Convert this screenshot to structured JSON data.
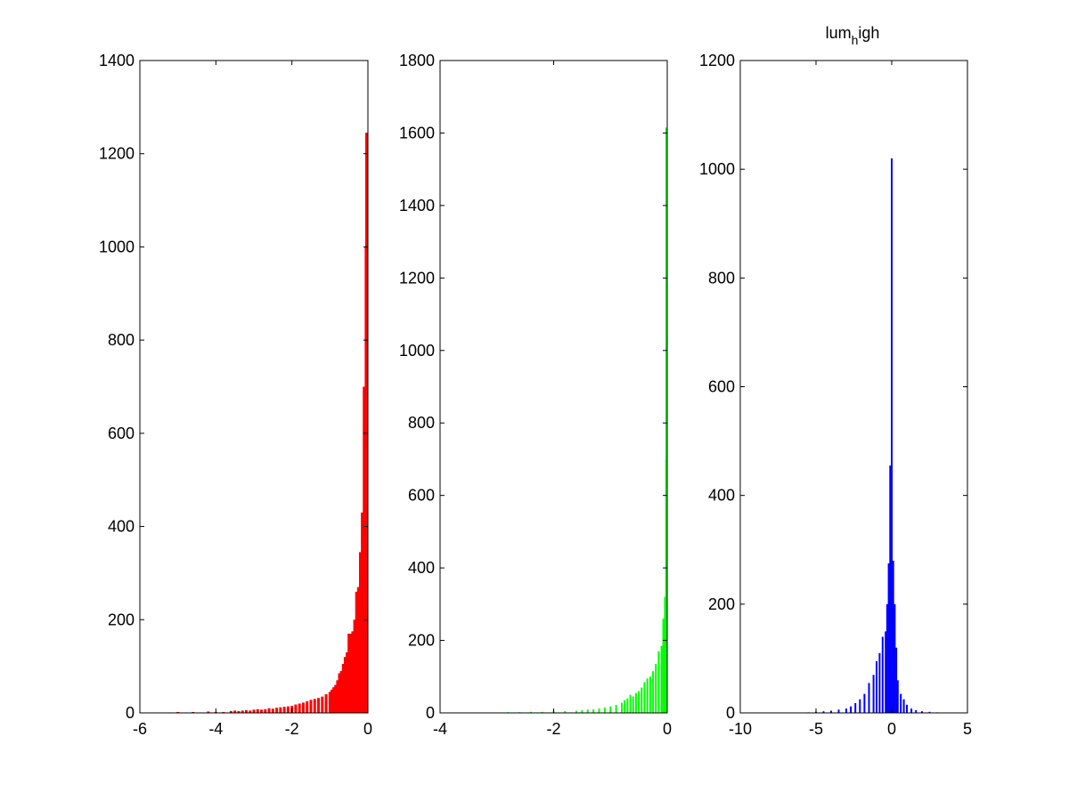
{
  "chart_data": [
    {
      "type": "bar",
      "title": "",
      "xlabel": "",
      "ylabel": "",
      "color": "#ff0000",
      "xlim": [
        -6,
        0
      ],
      "ylim": [
        0,
        1400
      ],
      "xticks": [
        -6,
        -4,
        -2,
        0
      ],
      "yticks": [
        0,
        200,
        400,
        600,
        800,
        1000,
        1200,
        1400
      ],
      "xtick_labels": [
        "-6",
        "-4",
        "-2",
        "0"
      ],
      "ytick_labels": [
        "0",
        "200",
        "400",
        "600",
        "800",
        "1000",
        "1200",
        "1400"
      ],
      "grid": false,
      "bins": {
        "x": [
          -5.6,
          -5.4,
          -5.2,
          -5.0,
          -4.8,
          -4.6,
          -4.4,
          -4.2,
          -4.0,
          -3.8,
          -3.6,
          -3.5,
          -3.4,
          -3.3,
          -3.2,
          -3.1,
          -3.0,
          -2.9,
          -2.8,
          -2.7,
          -2.6,
          -2.5,
          -2.4,
          -2.3,
          -2.2,
          -2.1,
          -2.0,
          -1.9,
          -1.8,
          -1.7,
          -1.6,
          -1.5,
          -1.4,
          -1.3,
          -1.2,
          -1.1,
          -1.0,
          -0.95,
          -0.9,
          -0.85,
          -0.8,
          -0.75,
          -0.7,
          -0.65,
          -0.6,
          -0.55,
          -0.5,
          -0.45,
          -0.4,
          -0.35,
          -0.3,
          -0.25,
          -0.2,
          -0.15,
          -0.1,
          -0.05,
          -0.02
        ],
        "values": [
          1,
          1,
          1,
          2,
          1,
          2,
          1,
          3,
          2,
          2,
          4,
          5,
          4,
          5,
          6,
          5,
          7,
          8,
          7,
          8,
          10,
          9,
          11,
          12,
          13,
          14,
          15,
          18,
          20,
          22,
          25,
          28,
          30,
          32,
          35,
          40,
          45,
          50,
          55,
          60,
          70,
          85,
          90,
          105,
          120,
          130,
          170,
          170,
          175,
          200,
          260,
          270,
          345,
          430,
          700,
          1000,
          1245
        ]
      }
    },
    {
      "type": "bar",
      "title": "",
      "xlabel": "",
      "ylabel": "",
      "color": "#00ff00",
      "xlim": [
        -4,
        0
      ],
      "ylim": [
        0,
        1800
      ],
      "xticks": [
        -4,
        -2,
        0
      ],
      "yticks": [
        0,
        200,
        400,
        600,
        800,
        1000,
        1200,
        1400,
        1600,
        1800
      ],
      "xtick_labels": [
        "-4",
        "-2",
        "0"
      ],
      "ytick_labels": [
        "0",
        "200",
        "400",
        "600",
        "800",
        "1000",
        "1200",
        "1400",
        "1600",
        "1800"
      ],
      "grid": false,
      "bins": {
        "x": [
          -3.2,
          -3.0,
          -2.8,
          -2.6,
          -2.4,
          -2.2,
          -2.0,
          -1.8,
          -1.6,
          -1.5,
          -1.4,
          -1.3,
          -1.2,
          -1.1,
          -1.0,
          -0.9,
          -0.8,
          -0.75,
          -0.7,
          -0.65,
          -0.6,
          -0.55,
          -0.5,
          -0.45,
          -0.4,
          -0.35,
          -0.3,
          -0.25,
          -0.2,
          -0.15,
          -0.1,
          -0.07,
          -0.04,
          -0.02,
          -0.01
        ],
        "values": [
          1,
          1,
          2,
          2,
          3,
          3,
          4,
          5,
          6,
          8,
          9,
          10,
          12,
          15,
          18,
          22,
          28,
          35,
          40,
          50,
          45,
          55,
          60,
          70,
          85,
          95,
          100,
          115,
          135,
          170,
          185,
          260,
          320,
          700,
          1615
        ]
      }
    },
    {
      "type": "bar",
      "title": "lum_high",
      "title_base": "lum",
      "title_sub": "h",
      "title_rest": "igh",
      "xlabel": "",
      "ylabel": "",
      "color": "#0000ff",
      "xlim": [
        -10,
        5
      ],
      "ylim": [
        0,
        1200
      ],
      "xticks": [
        -10,
        -5,
        0,
        5
      ],
      "yticks": [
        0,
        200,
        400,
        600,
        800,
        1000,
        1200
      ],
      "xtick_labels": [
        "-10",
        "-5",
        "0",
        "5"
      ],
      "ytick_labels": [
        "0",
        "200",
        "400",
        "600",
        "800",
        "1000",
        "1200"
      ],
      "grid": false,
      "bins": {
        "x": [
          -5.5,
          -5.0,
          -4.5,
          -4.0,
          -3.5,
          -3.0,
          -2.7,
          -2.4,
          -2.1,
          -1.8,
          -1.5,
          -1.2,
          -1.0,
          -0.8,
          -0.6,
          -0.4,
          -0.3,
          -0.2,
          -0.1,
          0.0,
          0.1,
          0.2,
          0.3,
          0.4,
          0.6,
          0.8,
          1.0,
          1.3,
          1.6,
          2.0,
          2.5,
          3.0
        ],
        "values": [
          1,
          2,
          3,
          4,
          6,
          8,
          12,
          18,
          25,
          35,
          55,
          70,
          95,
          110,
          140,
          150,
          200,
          275,
          455,
          1020,
          280,
          200,
          120,
          60,
          35,
          25,
          15,
          8,
          5,
          3,
          2,
          1
        ]
      }
    }
  ]
}
